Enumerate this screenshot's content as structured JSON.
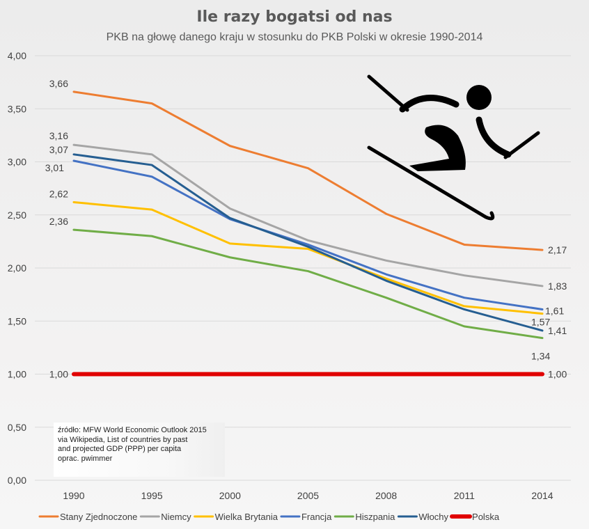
{
  "chart_data": {
    "type": "line",
    "title": "Ile razy bogatsi od nas",
    "subtitle": "PKB na głowę danego kraju w stosunku do PKB Polski w okresie 1990-2014",
    "categories": [
      "1990",
      "1995",
      "2000",
      "2005",
      "2008",
      "2011",
      "2014"
    ],
    "ylim": [
      0,
      4
    ],
    "yticks": [
      "0,00",
      "0,50",
      "1,00",
      "1,50",
      "2,00",
      "2,50",
      "3,00",
      "3,50",
      "4,00"
    ],
    "grid": true,
    "legend": "bottom",
    "series": [
      {
        "name": "Stany Zjednoczone",
        "color": "#ED7D31",
        "values": [
          3.66,
          3.55,
          3.15,
          2.94,
          2.51,
          2.22,
          2.17
        ],
        "start_label": "3,66",
        "end_label": "2,17"
      },
      {
        "name": "Niemcy",
        "color": "#A5A5A5",
        "values": [
          3.16,
          3.07,
          2.56,
          2.26,
          2.07,
          1.93,
          1.83
        ],
        "start_label": "3,16",
        "end_label": "1,83"
      },
      {
        "name": "Wielka Brytania",
        "color": "#FFC000",
        "values": [
          2.62,
          2.55,
          2.23,
          2.18,
          1.9,
          1.64,
          1.57
        ],
        "start_label": "2,62",
        "end_label": "1,57"
      },
      {
        "name": "Francja",
        "color": "#4472C4",
        "values": [
          3.01,
          2.86,
          2.46,
          2.22,
          1.94,
          1.72,
          1.61
        ],
        "start_label": "3,01",
        "end_label": "1,61"
      },
      {
        "name": "Hiszpania",
        "color": "#70AD47",
        "values": [
          2.36,
          2.3,
          2.1,
          1.97,
          1.72,
          1.45,
          1.34
        ],
        "start_label": "2,36",
        "end_label": "1,34"
      },
      {
        "name": "Włochy",
        "color": "#255E91",
        "values": [
          3.07,
          2.97,
          2.47,
          2.2,
          1.88,
          1.61,
          1.41
        ],
        "start_label": "3,07",
        "end_label": "1,41"
      },
      {
        "name": "Polska",
        "color": "#E00000",
        "values": [
          1.0,
          1.0,
          1.0,
          1.0,
          1.0,
          1.0,
          1.0
        ],
        "start_label": "1,00",
        "end_label": "1,00"
      }
    ]
  },
  "source_note": {
    "line1": "źródło: MFW World Economic Outlook 2015",
    "line2": "via Wikipedia, List of countries by past",
    "line3": "and projected GDP (PPP) per capita",
    "line4": "oprac. pwimmer"
  },
  "icon": {
    "name": "ski-jumper-icon",
    "color": "#000000"
  }
}
